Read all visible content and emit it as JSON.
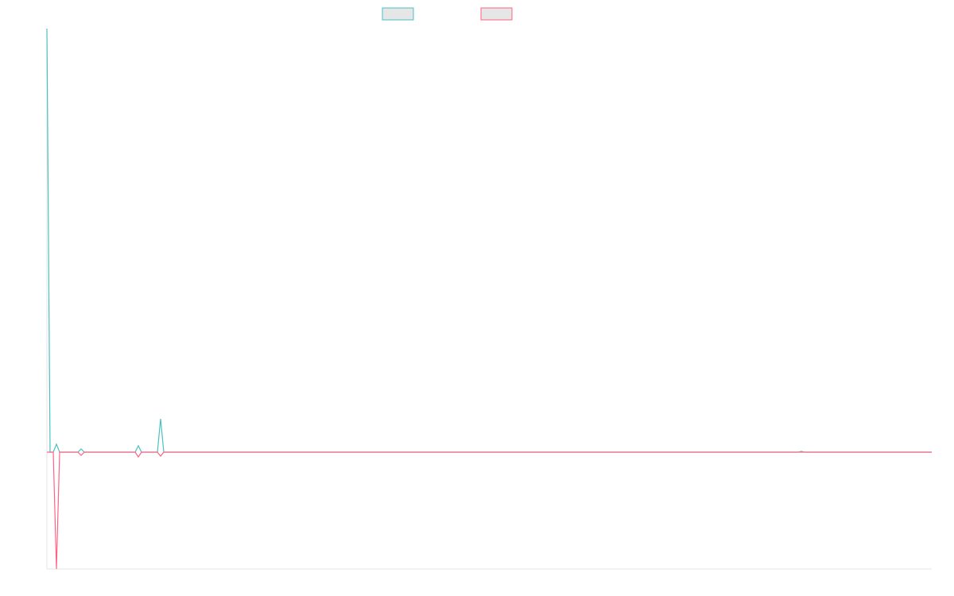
{
  "chart_data": {
    "type": "line",
    "x": [
      0,
      4,
      8,
      12,
      16,
      39,
      43,
      47,
      111,
      115,
      119,
      139,
      143,
      147,
      945,
      949,
      953,
      1113
    ],
    "xlim": [
      0,
      1113
    ],
    "ylim": [
      -147,
      533
    ],
    "series": [
      {
        "color": "#4bc0c0",
        "values": [
          533,
          0,
          0,
          10,
          0,
          0,
          4,
          0,
          0,
          8,
          0,
          0,
          42,
          0,
          0,
          1,
          0,
          0
        ]
      },
      {
        "color": "#ff6384",
        "values": [
          0,
          0,
          0,
          -147,
          0,
          0,
          -4,
          0,
          0,
          -6,
          0,
          0,
          -5,
          0,
          0,
          0,
          0,
          0
        ]
      }
    ]
  }
}
